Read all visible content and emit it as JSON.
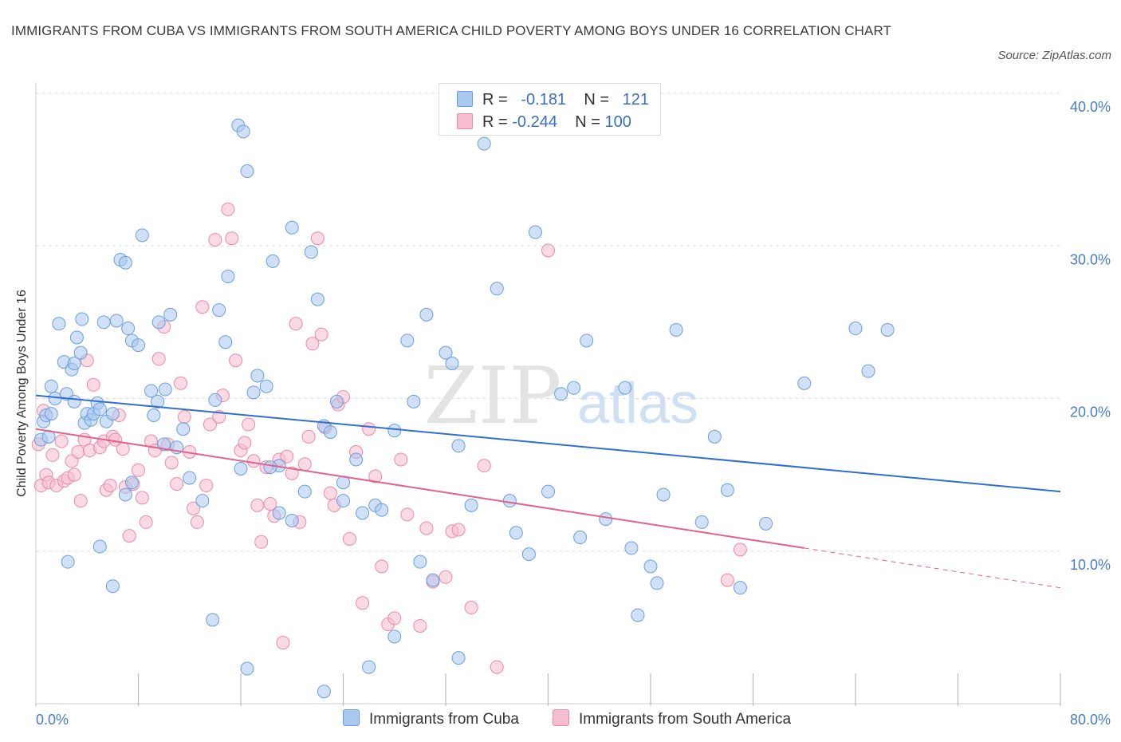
{
  "title": "IMMIGRANTS FROM CUBA VS IMMIGRANTS FROM SOUTH AMERICA CHILD POVERTY AMONG BOYS UNDER 16 CORRELATION CHART",
  "source": "Source: ZipAtlas.com",
  "watermark": {
    "zip": "ZIP",
    "atlas": "atlas"
  },
  "colors": {
    "cuba_fill": "#a9c8f0",
    "cuba_stroke": "#6a9ee0",
    "cuba_line": "#2f6fcf",
    "sa_fill": "#f7bccd",
    "sa_stroke": "#e98aa8",
    "sa_line": "#e0628f",
    "grid": "#dddddd",
    "tick_text": "#4a7cc7"
  },
  "legend": {
    "rows": [
      {
        "r_label": "R =",
        "r_value": "-0.181",
        "n_label": "N =",
        "n_value": "121"
      },
      {
        "r_label": "R =",
        "r_value": "-0.244",
        "n_label": "N =",
        "n_value": "100"
      }
    ]
  },
  "chart_data": {
    "type": "scatter",
    "title": "IMMIGRANTS FROM CUBA VS IMMIGRANTS FROM SOUTH AMERICA CHILD POVERTY AMONG BOYS UNDER 16 CORRELATION CHART",
    "xlabel": "",
    "ylabel": "Child Poverty Among Boys Under 16",
    "xlim": [
      0,
      80
    ],
    "ylim": [
      0,
      40
    ],
    "x_tick_labels": [
      "0.0%",
      "80.0%"
    ],
    "y_ticks": [
      10,
      20,
      30,
      40
    ],
    "y_tick_labels": [
      "10.0%",
      "20.0%",
      "30.0%",
      "40.0%"
    ],
    "grid": true,
    "legend_position": "top-center",
    "series": [
      {
        "name": "Immigrants from Cuba",
        "r": -0.181,
        "n": 121,
        "trend": {
          "x": [
            0,
            80
          ],
          "y": [
            20.2,
            13.9
          ]
        },
        "points": [
          [
            0.4,
            17.3
          ],
          [
            0.6,
            18.5
          ],
          [
            0.8,
            18.9
          ],
          [
            1.0,
            17.5
          ],
          [
            1.2,
            19.0
          ],
          [
            1.5,
            20.0
          ],
          [
            1.8,
            24.9
          ],
          [
            2.2,
            22.4
          ],
          [
            2.4,
            20.3
          ],
          [
            2.8,
            21.9
          ],
          [
            3.0,
            22.3
          ],
          [
            3.2,
            24.0
          ],
          [
            3.5,
            23.0
          ],
          [
            3.6,
            25.2
          ],
          [
            3.8,
            18.4
          ],
          [
            4.0,
            19.0
          ],
          [
            4.3,
            18.6
          ],
          [
            4.5,
            19.0
          ],
          [
            4.8,
            19.7
          ],
          [
            5.0,
            19.3
          ],
          [
            5.3,
            25.0
          ],
          [
            5.5,
            18.5
          ],
          [
            6.0,
            19.0
          ],
          [
            6.3,
            25.1
          ],
          [
            6.6,
            29.1
          ],
          [
            7.0,
            28.9
          ],
          [
            7.2,
            24.6
          ],
          [
            7.5,
            23.8
          ],
          [
            8.0,
            23.5
          ],
          [
            8.3,
            30.7
          ],
          [
            9.0,
            20.5
          ],
          [
            9.2,
            18.9
          ],
          [
            9.6,
            25.0
          ],
          [
            10.1,
            20.6
          ],
          [
            10.5,
            25.5
          ],
          [
            10.0,
            17.0
          ],
          [
            11.5,
            18.0
          ],
          [
            12.0,
            14.8
          ],
          [
            13.0,
            13.3
          ],
          [
            14.0,
            19.9
          ],
          [
            14.3,
            25.8
          ],
          [
            14.8,
            23.7
          ],
          [
            15.0,
            28.0
          ],
          [
            15.8,
            37.9
          ],
          [
            16.2,
            37.5
          ],
          [
            16.5,
            34.9
          ],
          [
            17.0,
            20.4
          ],
          [
            17.3,
            21.5
          ],
          [
            18.0,
            20.8
          ],
          [
            18.5,
            29.0
          ],
          [
            19.0,
            15.6
          ],
          [
            20.0,
            31.2
          ],
          [
            21.0,
            13.9
          ],
          [
            21.5,
            29.6
          ],
          [
            22.0,
            26.5
          ],
          [
            22.5,
            18.2
          ],
          [
            23.0,
            17.8
          ],
          [
            23.5,
            19.8
          ],
          [
            24.0,
            14.5
          ],
          [
            25.0,
            16.0
          ],
          [
            25.5,
            12.5
          ],
          [
            26.5,
            13.0
          ],
          [
            27.0,
            12.7
          ],
          [
            28.0,
            17.9
          ],
          [
            29.0,
            23.8
          ],
          [
            29.5,
            19.8
          ],
          [
            30.5,
            25.5
          ],
          [
            32.0,
            23.0
          ],
          [
            32.5,
            22.3
          ],
          [
            33.0,
            16.9
          ],
          [
            34.0,
            13.0
          ],
          [
            35.0,
            36.7
          ],
          [
            36.0,
            27.2
          ],
          [
            37.0,
            13.3
          ],
          [
            37.5,
            11.2
          ],
          [
            38.5,
            9.8
          ],
          [
            39.0,
            30.9
          ],
          [
            40.0,
            13.9
          ],
          [
            41.0,
            20.3
          ],
          [
            42.0,
            20.7
          ],
          [
            42.5,
            10.9
          ],
          [
            43.0,
            23.8
          ],
          [
            44.5,
            12.1
          ],
          [
            46.0,
            20.7
          ],
          [
            46.5,
            10.2
          ],
          [
            47.0,
            5.8
          ],
          [
            48.0,
            9.0
          ],
          [
            48.5,
            7.9
          ],
          [
            49.0,
            13.7
          ],
          [
            50.0,
            24.5
          ],
          [
            52.0,
            11.9
          ],
          [
            53.0,
            17.5
          ],
          [
            54.0,
            14.0
          ],
          [
            55.0,
            7.6
          ],
          [
            57.0,
            11.8
          ],
          [
            60.0,
            21.0
          ],
          [
            64.0,
            24.6
          ],
          [
            65.0,
            21.8
          ],
          [
            66.5,
            24.5
          ],
          [
            2.5,
            9.3
          ],
          [
            5.0,
            10.3
          ],
          [
            6.0,
            7.7
          ],
          [
            7.0,
            13.7
          ],
          [
            7.5,
            14.5
          ],
          [
            11.0,
            16.8
          ],
          [
            13.8,
            5.5
          ],
          [
            16.5,
            2.3
          ],
          [
            20.0,
            12.0
          ],
          [
            22.5,
            0.8
          ],
          [
            24.0,
            13.3
          ],
          [
            26.0,
            2.4
          ],
          [
            28.0,
            4.4
          ],
          [
            30.0,
            9.3
          ],
          [
            31.0,
            8.1
          ],
          [
            33.0,
            3.0
          ],
          [
            16.0,
            15.4
          ],
          [
            18.3,
            15.5
          ],
          [
            19.0,
            12.5
          ],
          [
            9.5,
            19.8
          ],
          [
            1.2,
            20.8
          ],
          [
            3.0,
            19.8
          ]
        ]
      },
      {
        "name": "Immigrants from South America",
        "r": -0.244,
        "n": 100,
        "trend": {
          "x": [
            0,
            60
          ],
          "y": [
            18.0,
            10.2
          ]
        },
        "trend_extension": {
          "x": [
            60,
            80
          ],
          "y": [
            10.2,
            7.6
          ]
        },
        "points": [
          [
            0.2,
            17.0
          ],
          [
            0.4,
            14.3
          ],
          [
            0.6,
            19.2
          ],
          [
            0.8,
            15.0
          ],
          [
            1.0,
            14.5
          ],
          [
            1.3,
            16.3
          ],
          [
            1.6,
            14.3
          ],
          [
            2.0,
            17.2
          ],
          [
            2.2,
            14.6
          ],
          [
            2.5,
            14.8
          ],
          [
            2.8,
            15.9
          ],
          [
            3.0,
            15.0
          ],
          [
            3.3,
            16.5
          ],
          [
            3.5,
            13.3
          ],
          [
            3.8,
            17.3
          ],
          [
            4.0,
            22.5
          ],
          [
            4.2,
            16.6
          ],
          [
            4.5,
            20.9
          ],
          [
            5.0,
            16.8
          ],
          [
            5.3,
            17.2
          ],
          [
            5.5,
            14.0
          ],
          [
            5.8,
            14.3
          ],
          [
            6.0,
            17.5
          ],
          [
            6.2,
            17.3
          ],
          [
            6.5,
            18.9
          ],
          [
            6.8,
            16.7
          ],
          [
            7.0,
            14.2
          ],
          [
            7.3,
            11.0
          ],
          [
            7.6,
            14.4
          ],
          [
            8.0,
            15.3
          ],
          [
            8.3,
            13.5
          ],
          [
            8.6,
            11.9
          ],
          [
            9.0,
            17.2
          ],
          [
            9.3,
            16.6
          ],
          [
            9.6,
            22.6
          ],
          [
            10.0,
            24.7
          ],
          [
            10.3,
            17.0
          ],
          [
            10.6,
            15.8
          ],
          [
            11.0,
            14.4
          ],
          [
            11.3,
            21.0
          ],
          [
            11.6,
            18.8
          ],
          [
            12.0,
            16.5
          ],
          [
            12.3,
            12.8
          ],
          [
            12.6,
            11.9
          ],
          [
            13.0,
            26.0
          ],
          [
            13.3,
            14.3
          ],
          [
            13.6,
            18.3
          ],
          [
            14.0,
            30.4
          ],
          [
            14.3,
            18.8
          ],
          [
            14.6,
            20.2
          ],
          [
            15.0,
            32.4
          ],
          [
            15.3,
            30.5
          ],
          [
            15.6,
            22.5
          ],
          [
            16.0,
            16.6
          ],
          [
            16.3,
            17.1
          ],
          [
            16.6,
            18.3
          ],
          [
            17.0,
            15.9
          ],
          [
            17.3,
            13.0
          ],
          [
            17.6,
            10.6
          ],
          [
            18.0,
            15.5
          ],
          [
            18.3,
            13.1
          ],
          [
            18.6,
            12.3
          ],
          [
            19.0,
            16.0
          ],
          [
            19.3,
            4.0
          ],
          [
            19.6,
            16.2
          ],
          [
            20.0,
            15.1
          ],
          [
            20.3,
            24.9
          ],
          [
            20.6,
            11.9
          ],
          [
            21.0,
            15.7
          ],
          [
            21.3,
            17.5
          ],
          [
            21.6,
            23.6
          ],
          [
            22.0,
            30.5
          ],
          [
            22.3,
            24.2
          ],
          [
            22.6,
            18.1
          ],
          [
            23.0,
            13.8
          ],
          [
            23.3,
            13.0
          ],
          [
            23.6,
            19.6
          ],
          [
            24.0,
            20.1
          ],
          [
            24.5,
            10.8
          ],
          [
            25.0,
            16.5
          ],
          [
            25.5,
            6.6
          ],
          [
            26.0,
            18.0
          ],
          [
            26.5,
            14.9
          ],
          [
            27.0,
            9.0
          ],
          [
            27.5,
            5.2
          ],
          [
            28.0,
            5.6
          ],
          [
            28.5,
            16.0
          ],
          [
            29.0,
            12.4
          ],
          [
            30.0,
            5.1
          ],
          [
            30.5,
            11.5
          ],
          [
            31.0,
            8.0
          ],
          [
            32.0,
            8.3
          ],
          [
            32.5,
            11.3
          ],
          [
            33.0,
            11.4
          ],
          [
            34.0,
            6.3
          ],
          [
            35.0,
            15.6
          ],
          [
            36.0,
            2.4
          ],
          [
            40.0,
            29.7
          ],
          [
            54.0,
            8.1
          ],
          [
            55.0,
            10.1
          ]
        ]
      }
    ]
  },
  "bottom_legend": [
    {
      "label": "Immigrants from Cuba"
    },
    {
      "label": "Immigrants from South America"
    }
  ]
}
